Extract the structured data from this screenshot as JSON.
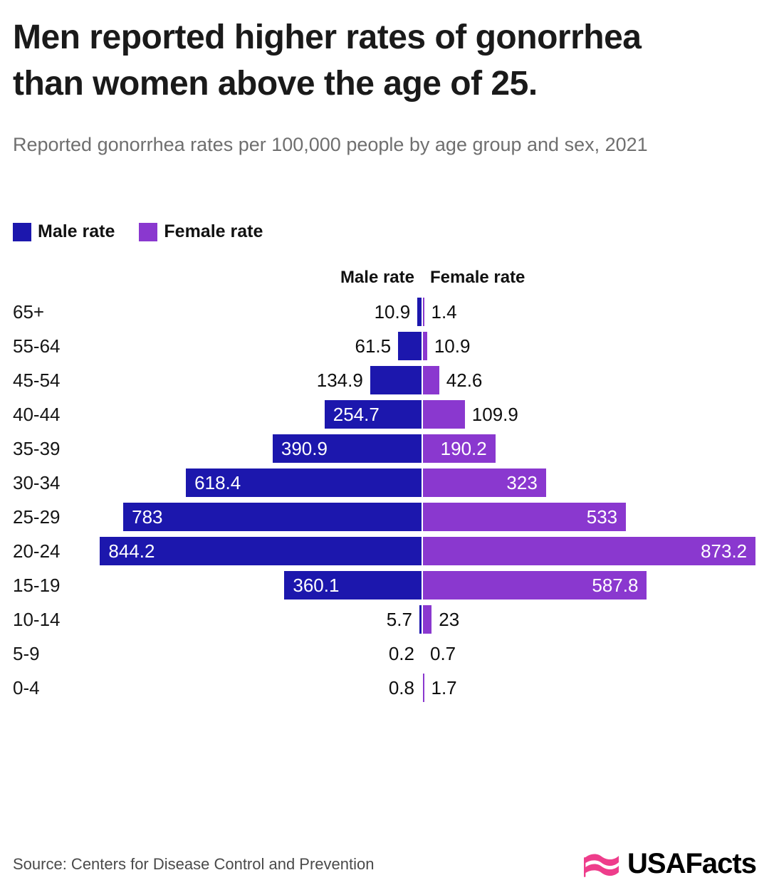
{
  "header": {
    "title": "Men reported higher rates of gonorrhea than women above the age of 25.",
    "subtitle": "Reported gonorrhea rates per 100,000 people by age group and sex, 2021"
  },
  "legend": [
    {
      "label": "Male rate",
      "color": "#1c17ad"
    },
    {
      "label": "Female rate",
      "color": "#8a38cf"
    }
  ],
  "chart_data": {
    "type": "bar",
    "variant": "diverging-pyramid",
    "title": "Men reported higher rates of gonorrhea than women above the age of 25.",
    "subtitle": "Reported gonorrhea rates per 100,000 people by age group and sex, 2021",
    "categories": [
      "65+",
      "55-64",
      "45-54",
      "40-44",
      "35-39",
      "30-34",
      "25-29",
      "20-24",
      "15-19",
      "10-14",
      "5-9",
      "0-4"
    ],
    "series": [
      {
        "name": "Male rate",
        "color": "#1c17ad",
        "values": [
          10.9,
          61.5,
          134.9,
          254.7,
          390.9,
          618.4,
          783,
          844.2,
          360.1,
          5.7,
          0.2,
          0.8
        ]
      },
      {
        "name": "Female rate",
        "color": "#8a38cf",
        "values": [
          1.4,
          10.9,
          42.6,
          109.9,
          190.2,
          323,
          533,
          873.2,
          587.8,
          23,
          0.7,
          1.7
        ]
      }
    ],
    "value_labels": {
      "male": [
        "10.9",
        "61.5",
        "134.9",
        "254.7",
        "390.9",
        "618.4",
        "783",
        "844.2",
        "360.1",
        "5.7",
        "0.2",
        "0.8"
      ],
      "female": [
        "1.4",
        "10.9",
        "42.6",
        "109.9",
        "190.2",
        "323",
        "533",
        "873.2",
        "587.8",
        "23",
        "0.7",
        "1.7"
      ]
    },
    "column_headers": {
      "male": "Male rate",
      "female": "Female rate"
    },
    "max_value": 873.2,
    "axis_center": true,
    "grid": false,
    "legend_position": "top-left"
  },
  "footer": {
    "source": "Source: Centers for Disease Control and Prevention",
    "logo_text": "USAFacts",
    "logo_color": "#ee3d8b"
  }
}
